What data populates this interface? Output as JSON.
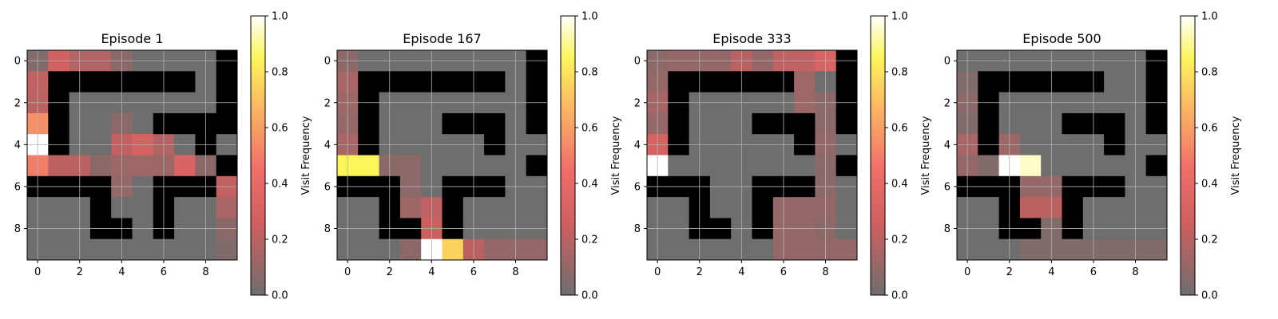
{
  "chart_data": [
    {
      "type": "heatmap",
      "title": "Episode 1",
      "colorbar_label": "Visit Frequency",
      "colorbar_ticks": [
        "0.0",
        "0.2",
        "0.4",
        "0.6",
        "0.8",
        "1.0"
      ],
      "x_ticks": [
        "0",
        "2",
        "4",
        "6",
        "8"
      ],
      "y_ticks": [
        "0",
        "2",
        "4",
        "6",
        "8"
      ],
      "clim": [
        0,
        1
      ],
      "grid": true,
      "wall_color": "#000000",
      "walls": [
        [
          0,
          9
        ],
        [
          1,
          1
        ],
        [
          1,
          2
        ],
        [
          1,
          3
        ],
        [
          1,
          4
        ],
        [
          1,
          5
        ],
        [
          1,
          6
        ],
        [
          1,
          7
        ],
        [
          1,
          9
        ],
        [
          2,
          1
        ],
        [
          2,
          9
        ],
        [
          3,
          1
        ],
        [
          3,
          6
        ],
        [
          3,
          7
        ],
        [
          3,
          8
        ],
        [
          3,
          9
        ],
        [
          4,
          1
        ],
        [
          4,
          8
        ],
        [
          5,
          9
        ],
        [
          6,
          0
        ],
        [
          6,
          1
        ],
        [
          6,
          2
        ],
        [
          6,
          3
        ],
        [
          6,
          6
        ],
        [
          6,
          7
        ],
        [
          6,
          8
        ],
        [
          7,
          3
        ],
        [
          7,
          6
        ],
        [
          8,
          3
        ],
        [
          8,
          4
        ],
        [
          8,
          6
        ]
      ],
      "values": [
        [
          0.05,
          0.28,
          0.18,
          0.18,
          0.08,
          0,
          0,
          0,
          0,
          0
        ],
        [
          0.22,
          0,
          0,
          0,
          0,
          0,
          0,
          0,
          0,
          0
        ],
        [
          0.2,
          0,
          0,
          0,
          0,
          0,
          0,
          0,
          0,
          0
        ],
        [
          0.55,
          0,
          0,
          0,
          0.08,
          0,
          0,
          0,
          0,
          0
        ],
        [
          1.0,
          0,
          0,
          0,
          0.22,
          0.3,
          0.18,
          0,
          0,
          0
        ],
        [
          0.5,
          0.2,
          0.2,
          0.08,
          0.12,
          0.12,
          0.12,
          0.32,
          0.08,
          0
        ],
        [
          0,
          0,
          0,
          0,
          0.1,
          0,
          0,
          0,
          0.08,
          0.22
        ],
        [
          0,
          0,
          0,
          0,
          0,
          0,
          0,
          0,
          0,
          0.15
        ],
        [
          0,
          0,
          0,
          0,
          0,
          0,
          0,
          0,
          0,
          0.08
        ],
        [
          0,
          0,
          0,
          0,
          0,
          0,
          0,
          0,
          0,
          0.05
        ]
      ]
    },
    {
      "type": "heatmap",
      "title": "Episode 167",
      "colorbar_label": "Visit Frequency",
      "colorbar_ticks": [
        "0.0",
        "0.2",
        "0.4",
        "0.6",
        "0.8",
        "1.0"
      ],
      "x_ticks": [
        "0",
        "2",
        "4",
        "6",
        "8"
      ],
      "y_ticks": [
        "0",
        "2",
        "4",
        "6",
        "8"
      ],
      "clim": [
        0,
        1
      ],
      "grid": true,
      "wall_color": "#000000",
      "walls": [
        [
          0,
          9
        ],
        [
          1,
          1
        ],
        [
          1,
          2
        ],
        [
          1,
          3
        ],
        [
          1,
          4
        ],
        [
          1,
          5
        ],
        [
          1,
          6
        ],
        [
          1,
          7
        ],
        [
          1,
          9
        ],
        [
          2,
          1
        ],
        [
          2,
          9
        ],
        [
          3,
          1
        ],
        [
          3,
          5
        ],
        [
          3,
          6
        ],
        [
          3,
          7
        ],
        [
          3,
          9
        ],
        [
          4,
          1
        ],
        [
          4,
          7
        ],
        [
          5,
          9
        ],
        [
          6,
          0
        ],
        [
          6,
          1
        ],
        [
          6,
          2
        ],
        [
          6,
          5
        ],
        [
          6,
          6
        ],
        [
          6,
          7
        ],
        [
          7,
          2
        ],
        [
          7,
          5
        ],
        [
          8,
          2
        ],
        [
          8,
          3
        ],
        [
          8,
          5
        ]
      ],
      "values": [
        [
          0.08,
          0,
          0,
          0,
          0,
          0,
          0,
          0,
          0,
          0
        ],
        [
          0.15,
          0,
          0,
          0,
          0,
          0,
          0,
          0,
          0,
          0
        ],
        [
          0.12,
          0,
          0,
          0,
          0,
          0,
          0,
          0,
          0,
          0
        ],
        [
          0.1,
          0,
          0,
          0,
          0,
          0,
          0,
          0,
          0,
          0
        ],
        [
          0.15,
          0,
          0,
          0,
          0,
          0,
          0,
          0,
          0,
          0
        ],
        [
          0.85,
          0.85,
          0.08,
          0.08,
          0,
          0,
          0,
          0,
          0,
          0
        ],
        [
          0,
          0,
          0,
          0.08,
          0,
          0,
          0,
          0,
          0,
          0
        ],
        [
          0,
          0,
          0,
          0.12,
          0.22,
          0,
          0,
          0,
          0,
          0
        ],
        [
          0,
          0,
          0,
          0,
          0.25,
          0,
          0,
          0,
          0,
          0
        ],
        [
          0,
          0,
          0,
          0.08,
          1.0,
          0.75,
          0.2,
          0.1,
          0.1,
          0.1
        ]
      ]
    },
    {
      "type": "heatmap",
      "title": "Episode 333",
      "colorbar_label": "Visit Frequency",
      "colorbar_ticks": [
        "0.0",
        "0.2",
        "0.4",
        "0.6",
        "0.8",
        "1.0"
      ],
      "x_ticks": [
        "0",
        "2",
        "4",
        "6",
        "8"
      ],
      "y_ticks": [
        "0",
        "2",
        "4",
        "6",
        "8"
      ],
      "clim": [
        0,
        1
      ],
      "grid": true,
      "wall_color": "#000000",
      "walls": [
        [
          0,
          9
        ],
        [
          1,
          1
        ],
        [
          1,
          2
        ],
        [
          1,
          3
        ],
        [
          1,
          4
        ],
        [
          1,
          5
        ],
        [
          1,
          6
        ],
        [
          1,
          9
        ],
        [
          2,
          1
        ],
        [
          2,
          9
        ],
        [
          3,
          1
        ],
        [
          3,
          5
        ],
        [
          3,
          6
        ],
        [
          3,
          7
        ],
        [
          3,
          9
        ],
        [
          4,
          1
        ],
        [
          4,
          7
        ],
        [
          5,
          9
        ],
        [
          6,
          0
        ],
        [
          6,
          1
        ],
        [
          6,
          2
        ],
        [
          6,
          5
        ],
        [
          6,
          6
        ],
        [
          6,
          7
        ],
        [
          7,
          2
        ],
        [
          7,
          5
        ],
        [
          8,
          2
        ],
        [
          8,
          3
        ],
        [
          8,
          5
        ]
      ],
      "values": [
        [
          0.08,
          0.1,
          0.1,
          0.1,
          0.2,
          0.1,
          0.22,
          0.22,
          0.32,
          0
        ],
        [
          0.1,
          0,
          0,
          0,
          0,
          0,
          0,
          0.12,
          0,
          0
        ],
        [
          0.15,
          0,
          0,
          0,
          0,
          0,
          0,
          0.12,
          0.08,
          0
        ],
        [
          0.1,
          0,
          0,
          0,
          0,
          0,
          0,
          0.1,
          0.08,
          0
        ],
        [
          0.3,
          0,
          0,
          0,
          0,
          0,
          0,
          0,
          0.1,
          0
        ],
        [
          1.0,
          0,
          0,
          0,
          0,
          0,
          0,
          0,
          0.08,
          0
        ],
        [
          0,
          0,
          0,
          0,
          0,
          0,
          0,
          0,
          0.08,
          0
        ],
        [
          0,
          0,
          0,
          0,
          0,
          0,
          0.1,
          0.1,
          0.1,
          0
        ],
        [
          0,
          0,
          0,
          0,
          0,
          0,
          0.1,
          0.1,
          0.08,
          0
        ],
        [
          0,
          0,
          0,
          0,
          0,
          0,
          0.1,
          0.1,
          0.1,
          0.1
        ]
      ]
    },
    {
      "type": "heatmap",
      "title": "Episode 500",
      "colorbar_label": "Visit Frequency",
      "colorbar_ticks": [
        "0.0",
        "0.2",
        "0.4",
        "0.6",
        "0.8",
        "1.0"
      ],
      "x_ticks": [
        "0",
        "2",
        "4",
        "6",
        "8"
      ],
      "y_ticks": [
        "0",
        "2",
        "4",
        "6",
        "8"
      ],
      "clim": [
        0,
        1
      ],
      "grid": true,
      "wall_color": "#000000",
      "walls": [
        [
          0,
          9
        ],
        [
          1,
          1
        ],
        [
          1,
          2
        ],
        [
          1,
          3
        ],
        [
          1,
          4
        ],
        [
          1,
          5
        ],
        [
          1,
          6
        ],
        [
          1,
          9
        ],
        [
          2,
          1
        ],
        [
          2,
          9
        ],
        [
          3,
          1
        ],
        [
          3,
          5
        ],
        [
          3,
          6
        ],
        [
          3,
          7
        ],
        [
          3,
          9
        ],
        [
          4,
          1
        ],
        [
          4,
          7
        ],
        [
          5,
          9
        ],
        [
          6,
          0
        ],
        [
          6,
          1
        ],
        [
          6,
          2
        ],
        [
          6,
          5
        ],
        [
          6,
          6
        ],
        [
          6,
          7
        ],
        [
          7,
          2
        ],
        [
          7,
          5
        ],
        [
          8,
          2
        ],
        [
          8,
          3
        ],
        [
          8,
          5
        ]
      ],
      "values": [
        [
          0,
          0,
          0,
          0,
          0,
          0,
          0,
          0,
          0,
          0
        ],
        [
          0.05,
          0,
          0,
          0,
          0,
          0,
          0,
          0,
          0,
          0
        ],
        [
          0.08,
          0,
          0,
          0,
          0,
          0,
          0,
          0,
          0,
          0
        ],
        [
          0.05,
          0,
          0,
          0,
          0,
          0,
          0,
          0,
          0,
          0
        ],
        [
          0.15,
          0,
          0.12,
          0,
          0,
          0,
          0,
          0,
          0,
          0
        ],
        [
          0.1,
          0.05,
          1.0,
          0.95,
          0,
          0,
          0,
          0,
          0,
          0
        ],
        [
          0,
          0,
          0,
          0.1,
          0.1,
          0,
          0,
          0,
          0,
          0
        ],
        [
          0,
          0,
          0,
          0.2,
          0.2,
          0,
          0,
          0,
          0,
          0
        ],
        [
          0,
          0,
          0,
          0.05,
          0.05,
          0,
          0,
          0,
          0,
          0
        ],
        [
          0,
          0,
          0,
          0.05,
          0.05,
          0.05,
          0.05,
          0.05,
          0.05,
          0.05
        ]
      ]
    }
  ]
}
